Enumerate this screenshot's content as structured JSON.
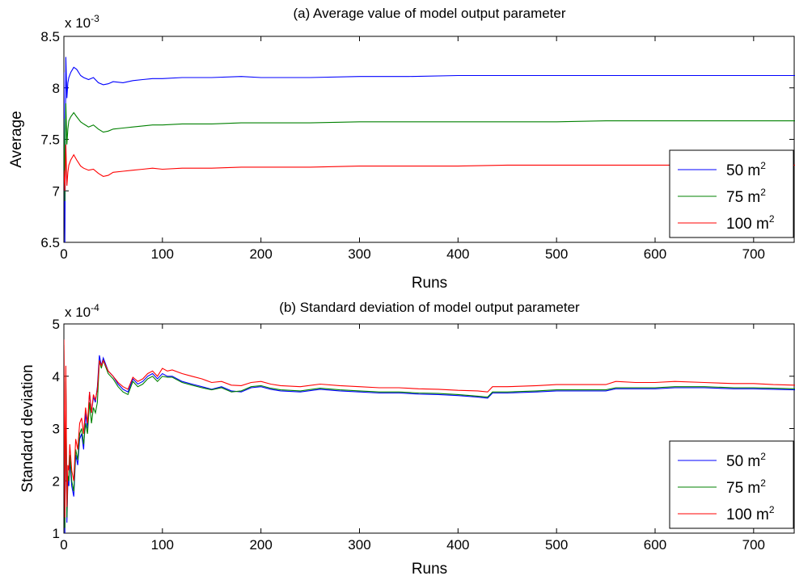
{
  "chart_data": [
    {
      "type": "line",
      "title": "(a) Average value of model output parameter",
      "xlabel": "Runs",
      "ylabel": "Average",
      "y_exponent_label": "x 10",
      "y_exponent": "-3",
      "xlim": [
        0,
        742
      ],
      "ylim": [
        6.5,
        8.5
      ],
      "xticks": [
        0,
        100,
        200,
        300,
        400,
        500,
        600,
        700
      ],
      "yticks": [
        6.5,
        7,
        7.5,
        8,
        8.5
      ],
      "legend_position": "right",
      "grid": false,
      "series": [
        {
          "name": "50 m",
          "name_sup": "2",
          "color": "#0000ff",
          "x": [
            0,
            1,
            2,
            3,
            4,
            5,
            7,
            10,
            13,
            17,
            20,
            25,
            30,
            35,
            40,
            45,
            50,
            60,
            70,
            80,
            90,
            100,
            120,
            150,
            180,
            200,
            250,
            300,
            350,
            400,
            450,
            500,
            550,
            600,
            650,
            700,
            742
          ],
          "y": [
            8.15,
            6.5,
            8.3,
            7.9,
            8.05,
            8.1,
            8.15,
            8.2,
            8.18,
            8.12,
            8.1,
            8.08,
            8.1,
            8.05,
            8.03,
            8.04,
            8.06,
            8.05,
            8.07,
            8.08,
            8.09,
            8.09,
            8.1,
            8.1,
            8.11,
            8.1,
            8.1,
            8.11,
            8.11,
            8.12,
            8.12,
            8.12,
            8.12,
            8.12,
            8.12,
            8.12,
            8.12
          ]
        },
        {
          "name": "75 m",
          "name_sup": "2",
          "color": "#008000",
          "x": [
            0,
            1,
            2,
            3,
            4,
            5,
            7,
            10,
            13,
            17,
            20,
            25,
            30,
            35,
            40,
            45,
            50,
            60,
            70,
            80,
            90,
            100,
            120,
            150,
            180,
            200,
            250,
            300,
            350,
            400,
            450,
            500,
            550,
            600,
            650,
            700,
            742
          ],
          "y": [
            7.7,
            6.9,
            7.85,
            7.45,
            7.6,
            7.68,
            7.72,
            7.76,
            7.72,
            7.67,
            7.65,
            7.62,
            7.64,
            7.6,
            7.57,
            7.58,
            7.6,
            7.61,
            7.62,
            7.63,
            7.64,
            7.64,
            7.65,
            7.65,
            7.66,
            7.66,
            7.66,
            7.67,
            7.67,
            7.67,
            7.67,
            7.67,
            7.68,
            7.68,
            7.68,
            7.68,
            7.68
          ]
        },
        {
          "name": "100 m",
          "name_sup": "2",
          "color": "#ff0000",
          "x": [
            0,
            1,
            2,
            3,
            4,
            5,
            7,
            10,
            13,
            17,
            20,
            25,
            30,
            35,
            40,
            45,
            50,
            60,
            70,
            80,
            90,
            100,
            120,
            150,
            180,
            200,
            250,
            300,
            350,
            400,
            450,
            500,
            550,
            600,
            650,
            700,
            742
          ],
          "y": [
            7.2,
            7.0,
            7.45,
            7.05,
            7.18,
            7.25,
            7.3,
            7.35,
            7.3,
            7.24,
            7.22,
            7.2,
            7.21,
            7.17,
            7.14,
            7.15,
            7.18,
            7.19,
            7.2,
            7.21,
            7.22,
            7.21,
            7.22,
            7.22,
            7.23,
            7.23,
            7.23,
            7.24,
            7.24,
            7.24,
            7.25,
            7.25,
            7.25,
            7.25,
            7.25,
            7.25,
            7.25
          ]
        }
      ]
    },
    {
      "type": "line",
      "title": "(b) Standard deviation of model output parameter",
      "xlabel": "Runs",
      "ylabel": "Standard deviation",
      "y_exponent_label": "x 10",
      "y_exponent": "-4",
      "xlim": [
        0,
        742
      ],
      "ylim": [
        1,
        5
      ],
      "xticks": [
        0,
        100,
        200,
        300,
        400,
        500,
        600,
        700
      ],
      "yticks": [
        1,
        2,
        3,
        4,
        5
      ],
      "legend_position": "right",
      "grid": false,
      "series": [
        {
          "name": "50 m",
          "name_sup": "2",
          "color": "#0000ff",
          "x": [
            0,
            1,
            2,
            3,
            4,
            5,
            6,
            8,
            10,
            12,
            14,
            16,
            18,
            20,
            22,
            24,
            26,
            28,
            30,
            32,
            34,
            36,
            38,
            40,
            45,
            50,
            55,
            60,
            65,
            70,
            75,
            80,
            85,
            90,
            95,
            100,
            105,
            110,
            120,
            130,
            140,
            150,
            160,
            170,
            180,
            190,
            200,
            210,
            220,
            240,
            260,
            280,
            300,
            320,
            340,
            360,
            380,
            400,
            420,
            430,
            435,
            450,
            480,
            500,
            520,
            550,
            560,
            580,
            600,
            620,
            650,
            680,
            700,
            720,
            742
          ],
          "y": [
            4.5,
            1.0,
            3.9,
            1.2,
            2.0,
            1.9,
            2.4,
            1.9,
            1.7,
            2.5,
            2.3,
            2.8,
            2.9,
            2.6,
            3.3,
            3.0,
            3.7,
            3.3,
            3.6,
            3.5,
            3.8,
            4.4,
            4.2,
            4.35,
            4.1,
            4.0,
            3.85,
            3.75,
            3.7,
            3.95,
            3.85,
            3.9,
            4.0,
            4.05,
            3.95,
            4.05,
            4.0,
            4.0,
            3.9,
            3.85,
            3.8,
            3.75,
            3.8,
            3.72,
            3.7,
            3.78,
            3.8,
            3.75,
            3.72,
            3.7,
            3.75,
            3.72,
            3.7,
            3.68,
            3.68,
            3.66,
            3.65,
            3.63,
            3.6,
            3.58,
            3.68,
            3.68,
            3.7,
            3.72,
            3.72,
            3.72,
            3.76,
            3.76,
            3.76,
            3.78,
            3.78,
            3.76,
            3.76,
            3.75,
            3.74
          ]
        },
        {
          "name": "75 m",
          "name_sup": "2",
          "color": "#008000",
          "x": [
            0,
            1,
            2,
            3,
            4,
            5,
            6,
            8,
            10,
            12,
            14,
            16,
            18,
            20,
            22,
            24,
            26,
            28,
            30,
            32,
            34,
            36,
            38,
            40,
            45,
            50,
            55,
            60,
            65,
            70,
            75,
            80,
            85,
            90,
            95,
            100,
            105,
            110,
            120,
            130,
            140,
            150,
            160,
            170,
            180,
            190,
            200,
            210,
            220,
            240,
            260,
            280,
            300,
            320,
            340,
            360,
            380,
            400,
            420,
            430,
            435,
            450,
            480,
            500,
            520,
            550,
            560,
            580,
            600,
            620,
            650,
            680,
            700,
            720,
            742
          ],
          "y": [
            4.6,
            1.1,
            4.0,
            1.3,
            2.1,
            2.0,
            2.5,
            2.0,
            1.8,
            2.6,
            2.4,
            2.9,
            3.0,
            2.7,
            3.1,
            2.9,
            3.5,
            3.1,
            3.4,
            3.3,
            3.5,
            4.3,
            4.15,
            4.3,
            4.05,
            3.95,
            3.8,
            3.7,
            3.65,
            3.9,
            3.8,
            3.85,
            3.95,
            4.0,
            3.9,
            4.0,
            3.98,
            3.98,
            3.88,
            3.83,
            3.78,
            3.74,
            3.78,
            3.7,
            3.72,
            3.8,
            3.82,
            3.77,
            3.74,
            3.72,
            3.77,
            3.74,
            3.72,
            3.7,
            3.7,
            3.68,
            3.67,
            3.65,
            3.62,
            3.6,
            3.7,
            3.7,
            3.72,
            3.74,
            3.74,
            3.74,
            3.78,
            3.78,
            3.78,
            3.8,
            3.8,
            3.78,
            3.78,
            3.77,
            3.76
          ]
        },
        {
          "name": "100 m",
          "name_sup": "2",
          "color": "#ff0000",
          "x": [
            0,
            1,
            2,
            3,
            4,
            5,
            6,
            8,
            10,
            12,
            14,
            16,
            18,
            20,
            22,
            24,
            26,
            28,
            30,
            32,
            34,
            36,
            38,
            40,
            45,
            50,
            55,
            60,
            65,
            70,
            75,
            80,
            85,
            90,
            95,
            100,
            105,
            110,
            120,
            130,
            140,
            150,
            160,
            170,
            180,
            190,
            200,
            210,
            220,
            240,
            260,
            280,
            300,
            320,
            340,
            360,
            380,
            400,
            420,
            430,
            435,
            450,
            480,
            500,
            520,
            550,
            560,
            580,
            600,
            620,
            650,
            680,
            700,
            720,
            742
          ],
          "y": [
            4.7,
            1.3,
            4.2,
            1.5,
            2.3,
            2.2,
            2.7,
            2.2,
            2.0,
            2.8,
            2.6,
            3.1,
            3.2,
            2.9,
            3.4,
            3.1,
            3.7,
            3.3,
            3.65,
            3.55,
            3.75,
            4.3,
            4.2,
            4.3,
            4.1,
            4.0,
            3.88,
            3.8,
            3.75,
            3.98,
            3.9,
            3.95,
            4.05,
            4.1,
            4.0,
            4.15,
            4.1,
            4.12,
            4.05,
            4.0,
            3.95,
            3.88,
            3.9,
            3.83,
            3.82,
            3.88,
            3.9,
            3.85,
            3.82,
            3.8,
            3.85,
            3.82,
            3.8,
            3.78,
            3.78,
            3.76,
            3.75,
            3.73,
            3.72,
            3.7,
            3.8,
            3.8,
            3.82,
            3.84,
            3.84,
            3.84,
            3.9,
            3.88,
            3.88,
            3.9,
            3.88,
            3.86,
            3.86,
            3.84,
            3.83
          ]
        }
      ]
    }
  ]
}
